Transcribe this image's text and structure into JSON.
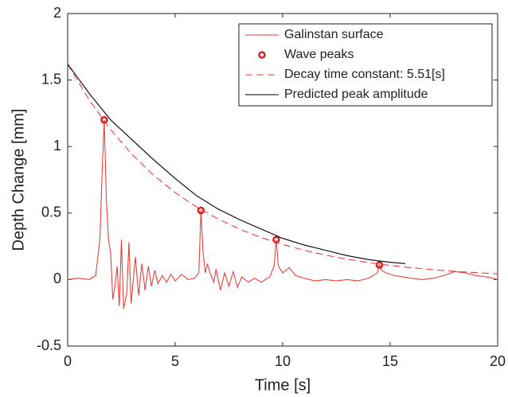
{
  "chart_data": {
    "type": "line",
    "xlabel": "Time [s]",
    "ylabel": "Depth Change [mm]",
    "xlim": [
      0,
      20
    ],
    "ylim": [
      -0.5,
      2
    ],
    "xticks": [
      0,
      5,
      10,
      15,
      20
    ],
    "yticks": [
      -0.5,
      0,
      0.5,
      1,
      1.5,
      2
    ],
    "grid": false,
    "legend": "top-right",
    "series": [
      {
        "name": "Galinstan surface",
        "color": "#e8403a",
        "style": "line",
        "x": [
          0,
          0.5,
          1.0,
          1.3,
          1.5,
          1.6,
          1.7,
          1.8,
          1.9,
          2.0,
          2.1,
          2.2,
          2.3,
          2.4,
          2.5,
          2.6,
          2.75,
          2.85,
          2.95,
          3.15,
          3.3,
          3.45,
          3.6,
          3.75,
          3.9,
          4.05,
          4.2,
          4.4,
          4.6,
          4.8,
          5.0,
          5.3,
          5.6,
          5.9,
          6.1,
          6.2,
          6.3,
          6.4,
          6.5,
          6.6,
          6.8,
          6.9,
          7.1,
          7.3,
          7.5,
          7.7,
          7.9,
          8.1,
          8.4,
          8.7,
          9.0,
          9.4,
          9.6,
          9.7,
          9.8,
          10.0,
          10.3,
          10.6,
          11.0,
          11.5,
          12.0,
          12.5,
          13.0,
          13.5,
          14.0,
          14.4,
          14.5,
          14.6,
          14.8,
          15.2,
          15.6,
          16.0,
          16.5,
          17.0,
          17.5,
          18.0,
          18.5,
          19.0,
          19.5,
          20.0
        ],
        "values": [
          0,
          0.01,
          0.0,
          0.03,
          0.3,
          0.8,
          1.2,
          0.6,
          0.3,
          0.2,
          -0.15,
          -0.05,
          0.1,
          -0.2,
          0.3,
          -0.22,
          -0.1,
          0.28,
          -0.18,
          0.17,
          -0.12,
          0.12,
          -0.08,
          0.1,
          -0.05,
          0.07,
          -0.03,
          0.03,
          -0.02,
          0.04,
          -0.01,
          0.04,
          0,
          0.01,
          0.05,
          0.52,
          0.2,
          0.05,
          0.12,
          0.06,
          -0.02,
          0.08,
          -0.08,
          0.05,
          -0.05,
          0.06,
          -0.06,
          0.02,
          -0.02,
          0.01,
          -0.02,
          0.02,
          0.1,
          0.3,
          0.1,
          0.05,
          0.09,
          0.03,
          0.01,
          -0.01,
          0,
          -0.01,
          0.0,
          -0.01,
          0.01,
          0.05,
          0.11,
          0.07,
          0.05,
          0.03,
          0.02,
          0.01,
          0.0,
          0.01,
          0.03,
          0.06,
          0.05,
          0.03,
          0.02,
          0.0
        ]
      },
      {
        "name": "Wave peaks",
        "color": "#d42020",
        "style": "markers",
        "x": [
          1.7,
          6.2,
          9.7,
          14.5
        ],
        "values": [
          1.2,
          0.52,
          0.3,
          0.11
        ]
      },
      {
        "name": "Decay time constant: 5.51[s]",
        "color": "#e8403a",
        "style": "dashed",
        "x": [
          0,
          1,
          2,
          3,
          4,
          5,
          6,
          7,
          8,
          9,
          10,
          11,
          12,
          13,
          14,
          15,
          16,
          17,
          18,
          19,
          20
        ],
        "values": [
          1.62,
          1.351,
          1.127,
          0.94,
          0.784,
          0.654,
          0.545,
          0.455,
          0.379,
          0.316,
          0.264,
          0.22,
          0.184,
          0.153,
          0.128,
          0.106,
          0.089,
          0.074,
          0.062,
          0.052,
          0.043
        ]
      },
      {
        "name": "Predicted peak amplitude",
        "color": "#000000",
        "style": "line",
        "x": [
          0,
          1,
          2,
          3,
          4,
          5,
          6,
          7,
          8,
          9,
          10,
          11,
          12,
          13,
          14,
          15,
          15.7
        ],
        "values": [
          1.62,
          1.4,
          1.2,
          1.05,
          0.9,
          0.76,
          0.63,
          0.53,
          0.45,
          0.38,
          0.31,
          0.26,
          0.22,
          0.18,
          0.15,
          0.13,
          0.12
        ]
      }
    ]
  }
}
